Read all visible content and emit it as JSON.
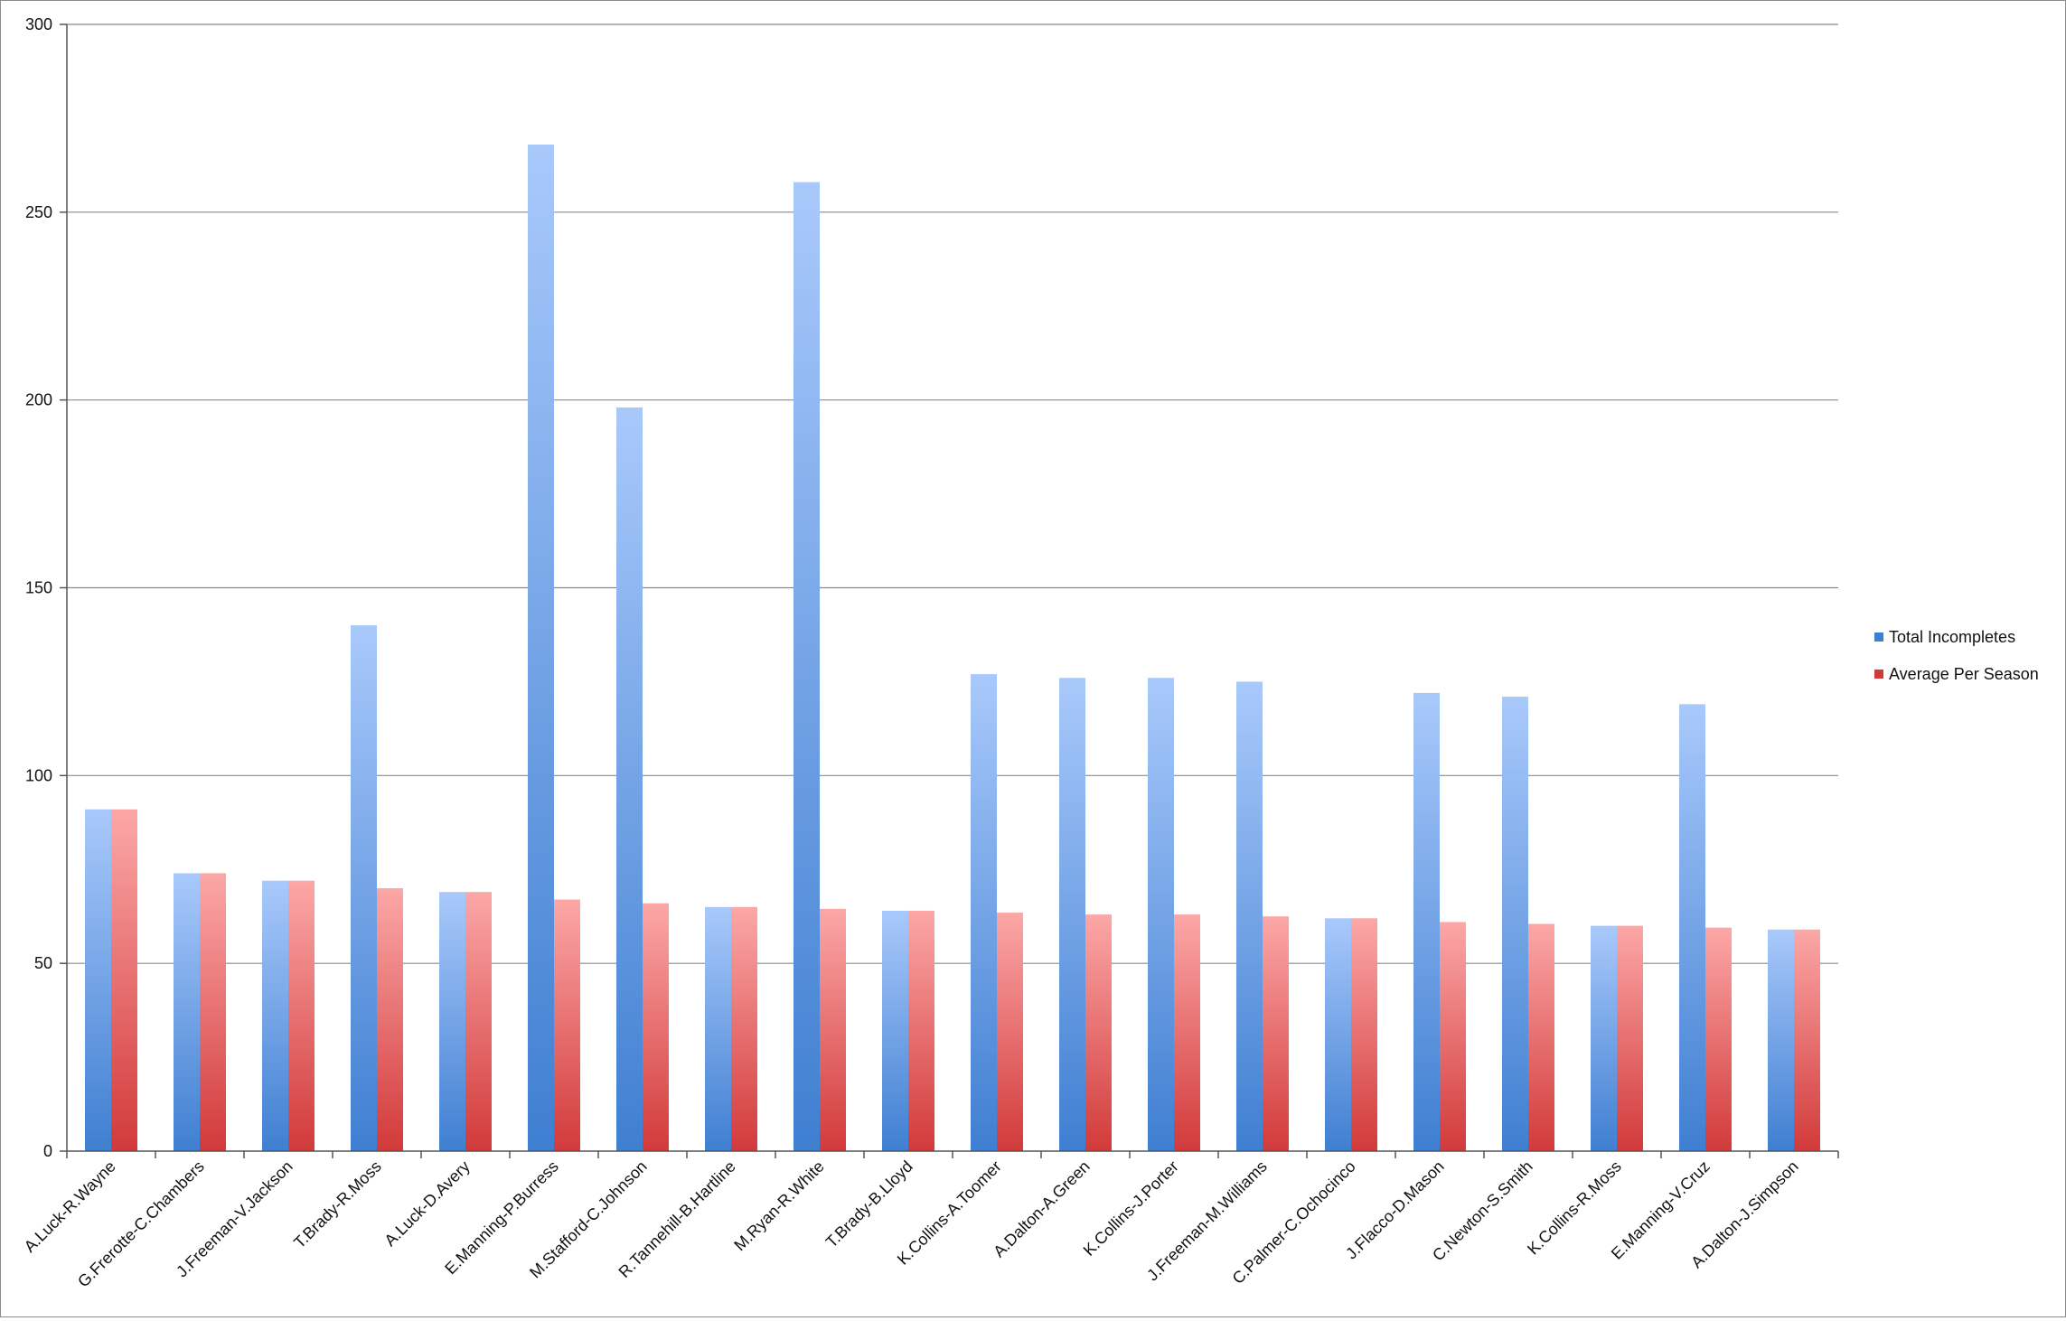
{
  "chart_data": {
    "type": "bar",
    "title": "",
    "xlabel": "",
    "ylabel": "",
    "ylim": [
      0,
      300
    ],
    "yticks": [
      0,
      50,
      100,
      150,
      200,
      250,
      300
    ],
    "grid": "horizontal",
    "legend_position": "right",
    "categories": [
      "A.Luck-R.Wayne",
      "G.Frerotte-C.Chambers",
      "J.Freeman-V.Jackson",
      "T.Brady-R.Moss",
      "A.Luck-D.Avery",
      "E.Manning-P.Burress",
      "M.Stafford-C.Johnson",
      "R.Tannehill-B.Hartline",
      "M.Ryan-R.White",
      "T.Brady-B.Lloyd",
      "K.Collins-A.Toomer",
      "A.Dalton-A.Green",
      "K.Collins-J.Porter",
      "J.Freeman-M.Williams",
      "C.Palmer-C.Ochocinco",
      "J.Flacco-D.Mason",
      "C.Newton-S.Smith",
      "K.Collins-R.Moss",
      "E.Manning-V.Cruz",
      "A.Dalton-J.Simpson"
    ],
    "series": [
      {
        "name": "Total Incompletes",
        "color_light": "#a9c9fb",
        "color_dark": "#3f7fd1",
        "values": [
          91,
          74,
          72,
          140,
          69,
          268,
          198,
          65,
          258,
          64,
          127,
          126,
          126,
          125,
          62,
          122,
          121,
          60,
          119,
          59
        ]
      },
      {
        "name": "Average Per Season",
        "color_light": "#fca7a7",
        "color_dark": "#d23a3a",
        "values": [
          91,
          74,
          72,
          70,
          69,
          67,
          66,
          65,
          64.5,
          64,
          63.5,
          63,
          63,
          62.5,
          62,
          61,
          60.5,
          60,
          59.5,
          59
        ]
      }
    ]
  }
}
